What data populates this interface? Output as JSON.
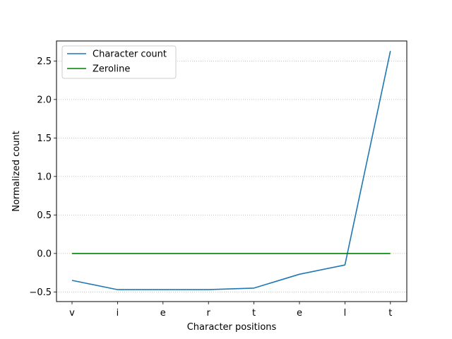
{
  "chart_data": {
    "type": "line",
    "title": "",
    "xlabel": "Character positions",
    "ylabel": "Normalized count",
    "categories": [
      "v",
      "i",
      "e",
      "r",
      "t",
      "e",
      "l",
      "t"
    ],
    "series": [
      {
        "name": "Character count",
        "color": "#1f77b4",
        "values": [
          -0.35,
          -0.47,
          -0.47,
          -0.47,
          -0.45,
          -0.27,
          -0.15,
          2.63
        ]
      },
      {
        "name": "Zeroline",
        "color": "#008000",
        "values": [
          0,
          0,
          0,
          0,
          0,
          0,
          0,
          0
        ]
      }
    ],
    "yticks": [
      -0.5,
      0.0,
      0.5,
      1.0,
      1.5,
      2.0,
      2.5
    ],
    "ytick_labels": [
      "−0.5",
      "0.0",
      "0.5",
      "1.0",
      "1.5",
      "2.0",
      "2.5"
    ],
    "ylim": [
      -0.625,
      2.76
    ],
    "grid": "horizontal dotted",
    "legend_position": "upper left"
  }
}
